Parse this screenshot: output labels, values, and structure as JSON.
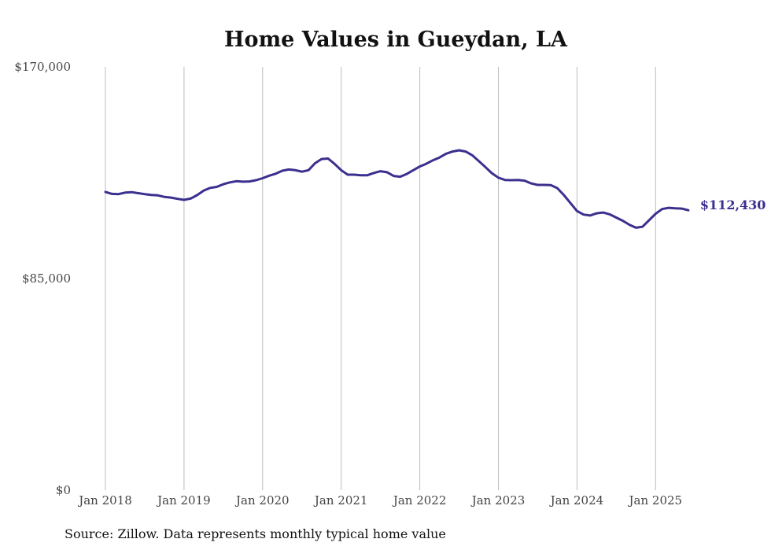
{
  "chart_data": {
    "type": "line",
    "title": "Home Values in Gueydan, LA",
    "source": "Source: Zillow. Data represents monthly typical home value",
    "xlabel": "",
    "ylabel": "",
    "ylim": [
      0,
      170000
    ],
    "y_ticks": [
      {
        "value": 0,
        "label": "$0"
      },
      {
        "value": 85000,
        "label": "$85,000"
      },
      {
        "value": 170000,
        "label": "$170,000"
      }
    ],
    "x_ticks": [
      {
        "label": "Jan 2018",
        "index": 0
      },
      {
        "label": "Jan 2019",
        "index": 12
      },
      {
        "label": "Jan 2020",
        "index": 24
      },
      {
        "label": "Jan 2021",
        "index": 36
      },
      {
        "label": "Jan 2022",
        "index": 48
      },
      {
        "label": "Jan 2023",
        "index": 60
      },
      {
        "label": "Jan 2024",
        "index": 72
      },
      {
        "label": "Jan 2025",
        "index": 84
      }
    ],
    "x_start": "2018-01",
    "x_end": "2025-06",
    "grid": "vertical",
    "line_color": "#3b2f8f",
    "end_label": "$112,430",
    "series": [
      {
        "values": [
          119800,
          119000,
          118900,
          119500,
          119700,
          119300,
          118900,
          118600,
          118400,
          117800,
          117500,
          117000,
          116600,
          117100,
          118500,
          120300,
          121400,
          121800,
          122900,
          123600,
          124100,
          123900,
          124000,
          124500,
          125300,
          126300,
          127100,
          128300,
          128800,
          128500,
          127900,
          128500,
          131300,
          133000,
          133200,
          131000,
          128500,
          126700,
          126700,
          126500,
          126500,
          127400,
          128100,
          127700,
          126200,
          125900,
          127000,
          128500,
          130000,
          131100,
          132500,
          133600,
          135100,
          136000,
          136500,
          136000,
          134500,
          132200,
          129800,
          127300,
          125500,
          124600,
          124500,
          124600,
          124300,
          123200,
          122600,
          122600,
          122500,
          121300,
          118500,
          115300,
          112100,
          110700,
          110300,
          111200,
          111500,
          110800,
          109500,
          108200,
          106600,
          105400,
          105800,
          108400,
          111000,
          112900,
          113400,
          113200,
          113100,
          112430
        ]
      }
    ]
  }
}
